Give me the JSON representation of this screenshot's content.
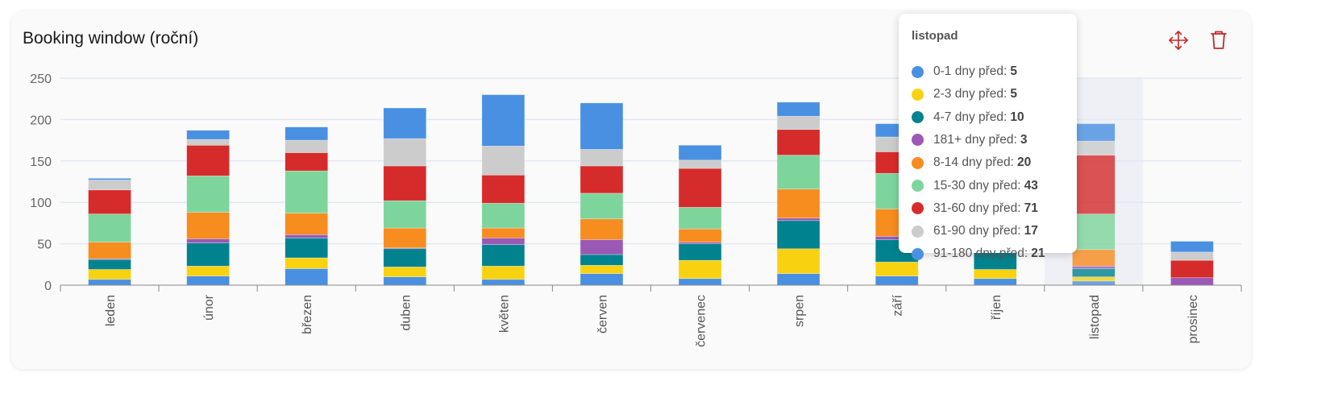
{
  "widget": {
    "title": "Booking window (roční)",
    "move_icon": "move-arrows-icon",
    "delete_icon": "trash-icon",
    "icon_color": "#c62828"
  },
  "chart_data": {
    "type": "bar",
    "stacked": true,
    "title": "Booking window (roční)",
    "xlabel": "",
    "ylabel": "",
    "ylim": [
      0,
      250
    ],
    "yticks": [
      "0",
      "50",
      "100",
      "150",
      "200",
      "250"
    ],
    "grid": true,
    "categories": [
      "leden",
      "únor",
      "březen",
      "duben",
      "květen",
      "červen",
      "červenec",
      "srpen",
      "září",
      "říjen",
      "listopad",
      "prosinec"
    ],
    "highlighted": "listopad",
    "series": [
      {
        "name": "0-1 dny před",
        "color": "#4a90e2",
        "values": [
          7,
          11,
          20,
          10,
          7,
          14,
          8,
          14,
          11,
          8,
          5,
          0
        ]
      },
      {
        "name": "2-3 dny před",
        "color": "#f8d210",
        "values": [
          12,
          12,
          13,
          12,
          16,
          10,
          22,
          30,
          17,
          11,
          5,
          0
        ]
      },
      {
        "name": "4-7 dny před",
        "color": "#00838f",
        "values": [
          12,
          28,
          24,
          22,
          26,
          13,
          20,
          34,
          27,
          22,
          10,
          0
        ]
      },
      {
        "name": "181+ dny před",
        "color": "#9b59b6",
        "values": [
          1,
          5,
          4,
          1,
          8,
          18,
          2,
          3,
          4,
          2,
          3,
          9
        ]
      },
      {
        "name": "8-14 dny před",
        "color": "#f78c1f",
        "values": [
          20,
          32,
          26,
          24,
          12,
          25,
          16,
          35,
          33,
          20,
          20,
          0
        ]
      },
      {
        "name": "15-30 dny před",
        "color": "#7dd59c",
        "values": [
          34,
          44,
          51,
          33,
          30,
          31,
          26,
          41,
          43,
          35,
          43,
          0
        ]
      },
      {
        "name": "31-60 dny před",
        "color": "#d62b2b",
        "values": [
          29,
          37,
          22,
          42,
          34,
          33,
          47,
          31,
          26,
          40,
          71,
          21
        ]
      },
      {
        "name": "61-90 dny před",
        "color": "#cccccc",
        "values": [
          12,
          7,
          15,
          33,
          35,
          20,
          10,
          16,
          18,
          15,
          17,
          10
        ]
      },
      {
        "name": "91-180 dny před",
        "color": "#4a90e2",
        "values": [
          2,
          11,
          16,
          37,
          62,
          56,
          18,
          17,
          16,
          20,
          21,
          13
        ]
      }
    ],
    "tooltip": {
      "title": "listopad",
      "rows": [
        {
          "label": "0-1 dny před:",
          "value": "5",
          "color": "#4a90e2"
        },
        {
          "label": "2-3 dny před:",
          "value": "5",
          "color": "#f8d210"
        },
        {
          "label": "4-7 dny před:",
          "value": "10",
          "color": "#00838f"
        },
        {
          "label": "181+ dny před:",
          "value": "3",
          "color": "#9b59b6"
        },
        {
          "label": "8-14 dny před:",
          "value": "20",
          "color": "#f78c1f"
        },
        {
          "label": "15-30 dny před:",
          "value": "43",
          "color": "#7dd59c"
        },
        {
          "label": "31-60 dny před:",
          "value": "71",
          "color": "#d62b2b"
        },
        {
          "label": "61-90 dny před:",
          "value": "17",
          "color": "#cccccc"
        },
        {
          "label": "91-180 dny před:",
          "value": "21",
          "color": "#4a90e2"
        }
      ]
    }
  }
}
